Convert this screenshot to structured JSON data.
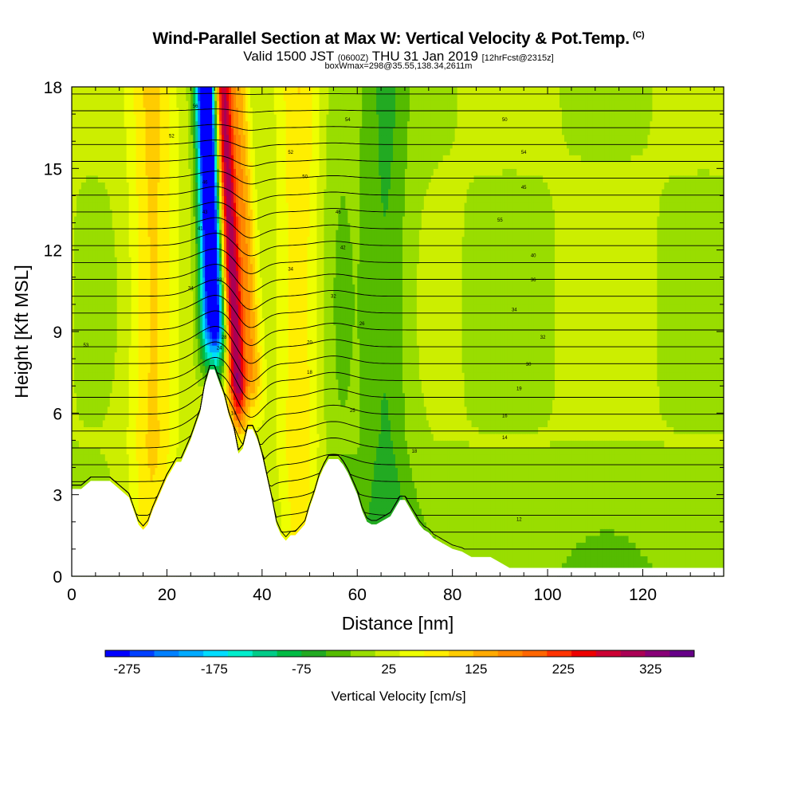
{
  "header": {
    "title": "Wind-Parallel Section at Max W: Vertical Velocity & Pot.Temp.",
    "copyright_mark": "(C)",
    "valid_prefix": "Valid 1500 JST",
    "valid_utc": "(0600Z)",
    "valid_date": "THU 31 Jan 2019",
    "forecast_tag": "[12hrFcst@2315z]",
    "box_info": "boxWmax=298@35.55,138.34,2611m"
  },
  "chart_data": {
    "type": "heatmap",
    "title": "Wind-Parallel Section at Max W: Vertical Velocity & Pot.Temp.",
    "xlabel": "Distance [nm]",
    "ylabel": "Height [Kft MSL]",
    "xlim": [
      0,
      137
    ],
    "ylim": [
      0,
      18
    ],
    "x_ticks": [
      0,
      20,
      40,
      60,
      80,
      100,
      120
    ],
    "y_ticks": [
      0,
      3,
      6,
      9,
      12,
      15,
      18
    ],
    "colorbar": {
      "label": "Vertical Velocity [cm/s]",
      "tick_labels": [
        -275,
        -175,
        -75,
        25,
        125,
        225,
        325
      ],
      "min": -300,
      "max": 375,
      "colors": [
        "#0000ff",
        "#0040ff",
        "#0080ff",
        "#00aaff",
        "#00ddff",
        "#00eecc",
        "#00cc88",
        "#00bb44",
        "#22aa22",
        "#55bb00",
        "#99dd00",
        "#ccee00",
        "#eeff00",
        "#ffee00",
        "#ffcc00",
        "#ffaa00",
        "#ff8800",
        "#ff6600",
        "#ff3300",
        "#ee0000",
        "#cc0033",
        "#aa0055",
        "#880077",
        "#660088"
      ]
    },
    "terrain_kft": [
      [
        0,
        3.2
      ],
      [
        2,
        3.2
      ],
      [
        4,
        3.5
      ],
      [
        6,
        3.5
      ],
      [
        8,
        3.5
      ],
      [
        10,
        3.2
      ],
      [
        12,
        2.9
      ],
      [
        13,
        2.4
      ],
      [
        14,
        1.9
      ],
      [
        15,
        1.7
      ],
      [
        16,
        1.9
      ],
      [
        17,
        2.4
      ],
      [
        18,
        2.8
      ],
      [
        19,
        3.2
      ],
      [
        20,
        3.6
      ],
      [
        21,
        3.9
      ],
      [
        22,
        4.2
      ],
      [
        23,
        4.2
      ],
      [
        24,
        4.6
      ],
      [
        25,
        5.0
      ],
      [
        26,
        5.5
      ],
      [
        27,
        6.0
      ],
      [
        28,
        7.0
      ],
      [
        29,
        7.6
      ],
      [
        30,
        7.6
      ],
      [
        31,
        7.1
      ],
      [
        32,
        6.6
      ],
      [
        33,
        5.9
      ],
      [
        34,
        5.4
      ],
      [
        35,
        4.5
      ],
      [
        36,
        4.7
      ],
      [
        37,
        5.4
      ],
      [
        38,
        5.4
      ],
      [
        39,
        5.0
      ],
      [
        40,
        4.4
      ],
      [
        41,
        3.6
      ],
      [
        42,
        2.8
      ],
      [
        43,
        1.9
      ],
      [
        44,
        1.5
      ],
      [
        45,
        1.3
      ],
      [
        46,
        1.5
      ],
      [
        47,
        1.5
      ],
      [
        48,
        1.7
      ],
      [
        49,
        1.9
      ],
      [
        50,
        2.5
      ],
      [
        51,
        3.0
      ],
      [
        52,
        3.6
      ],
      [
        53,
        4.0
      ],
      [
        54,
        4.3
      ],
      [
        55,
        4.3
      ],
      [
        56,
        4.3
      ],
      [
        57,
        4.1
      ],
      [
        58,
        3.8
      ],
      [
        59,
        3.4
      ],
      [
        60,
        3.0
      ],
      [
        61,
        2.4
      ],
      [
        62,
        2.0
      ],
      [
        63,
        1.9
      ],
      [
        64,
        1.9
      ],
      [
        65,
        2.0
      ],
      [
        66,
        2.1
      ],
      [
        67,
        2.2
      ],
      [
        68,
        2.5
      ],
      [
        69,
        2.8
      ],
      [
        70,
        2.8
      ],
      [
        71,
        2.5
      ],
      [
        72,
        2.2
      ],
      [
        73,
        1.9
      ],
      [
        74,
        1.7
      ],
      [
        75,
        1.6
      ],
      [
        76,
        1.4
      ],
      [
        77,
        1.3
      ],
      [
        78,
        1.2
      ],
      [
        79,
        1.1
      ],
      [
        80,
        1.0
      ],
      [
        82,
        0.9
      ],
      [
        84,
        0.7
      ],
      [
        88,
        0.7
      ],
      [
        90,
        0.5
      ],
      [
        92,
        0.3
      ],
      [
        137,
        0.3
      ]
    ],
    "vertical_velocity_bands_cm_s": [
      {
        "x": 28.5,
        "value": -180
      },
      {
        "x": 30.8,
        "value": -280
      },
      {
        "x": 34.5,
        "value": 300
      },
      {
        "x": 38.0,
        "value": 120
      },
      {
        "x": 17.0,
        "value": 90
      },
      {
        "x": 48.0,
        "value": 80
      },
      {
        "x": 55.5,
        "value": -30
      },
      {
        "x": 66.0,
        "value": -60
      }
    ],
    "theta_contour_labels": [
      {
        "x": 26,
        "y": 17.3,
        "text": "56"
      },
      {
        "x": 21,
        "y": 16.2,
        "text": "52"
      },
      {
        "x": 58,
        "y": 16.8,
        "text": "54"
      },
      {
        "x": 91,
        "y": 16.8,
        "text": "50"
      },
      {
        "x": 46,
        "y": 15.6,
        "text": "52"
      },
      {
        "x": 95,
        "y": 15.6,
        "text": "54"
      },
      {
        "x": 49,
        "y": 14.7,
        "text": "50"
      },
      {
        "x": 28,
        "y": 14.5,
        "text": "46"
      },
      {
        "x": 95,
        "y": 14.3,
        "text": "45"
      },
      {
        "x": 28,
        "y": 13.4,
        "text": "43"
      },
      {
        "x": 56,
        "y": 13.4,
        "text": "46"
      },
      {
        "x": 90,
        "y": 13.1,
        "text": "55"
      },
      {
        "x": 27,
        "y": 12.8,
        "text": "41"
      },
      {
        "x": 57,
        "y": 12.1,
        "text": "42"
      },
      {
        "x": 97,
        "y": 11.8,
        "text": "40"
      },
      {
        "x": 46,
        "y": 11.3,
        "text": "34"
      },
      {
        "x": 31,
        "y": 10.9,
        "text": "33"
      },
      {
        "x": 25,
        "y": 10.6,
        "text": "34"
      },
      {
        "x": 97,
        "y": 10.9,
        "text": "36"
      },
      {
        "x": 55,
        "y": 10.3,
        "text": "32"
      },
      {
        "x": 93,
        "y": 9.8,
        "text": "34"
      },
      {
        "x": 61,
        "y": 9.3,
        "text": "26"
      },
      {
        "x": 32,
        "y": 8.8,
        "text": "28"
      },
      {
        "x": 99,
        "y": 8.8,
        "text": "32"
      },
      {
        "x": 31,
        "y": 8.4,
        "text": "24"
      },
      {
        "x": 50,
        "y": 8.6,
        "text": "20"
      },
      {
        "x": 3,
        "y": 8.5,
        "text": "53"
      },
      {
        "x": 96,
        "y": 7.8,
        "text": "30"
      },
      {
        "x": 50,
        "y": 7.5,
        "text": "18"
      },
      {
        "x": 94,
        "y": 6.9,
        "text": "19"
      },
      {
        "x": 59,
        "y": 6.1,
        "text": "25"
      },
      {
        "x": 34,
        "y": 6.0,
        "text": "14"
      },
      {
        "x": 91,
        "y": 5.9,
        "text": "16"
      },
      {
        "x": 91,
        "y": 5.1,
        "text": "14"
      },
      {
        "x": 72,
        "y": 4.6,
        "text": "18"
      },
      {
        "x": 94,
        "y": 2.1,
        "text": "12"
      }
    ]
  }
}
